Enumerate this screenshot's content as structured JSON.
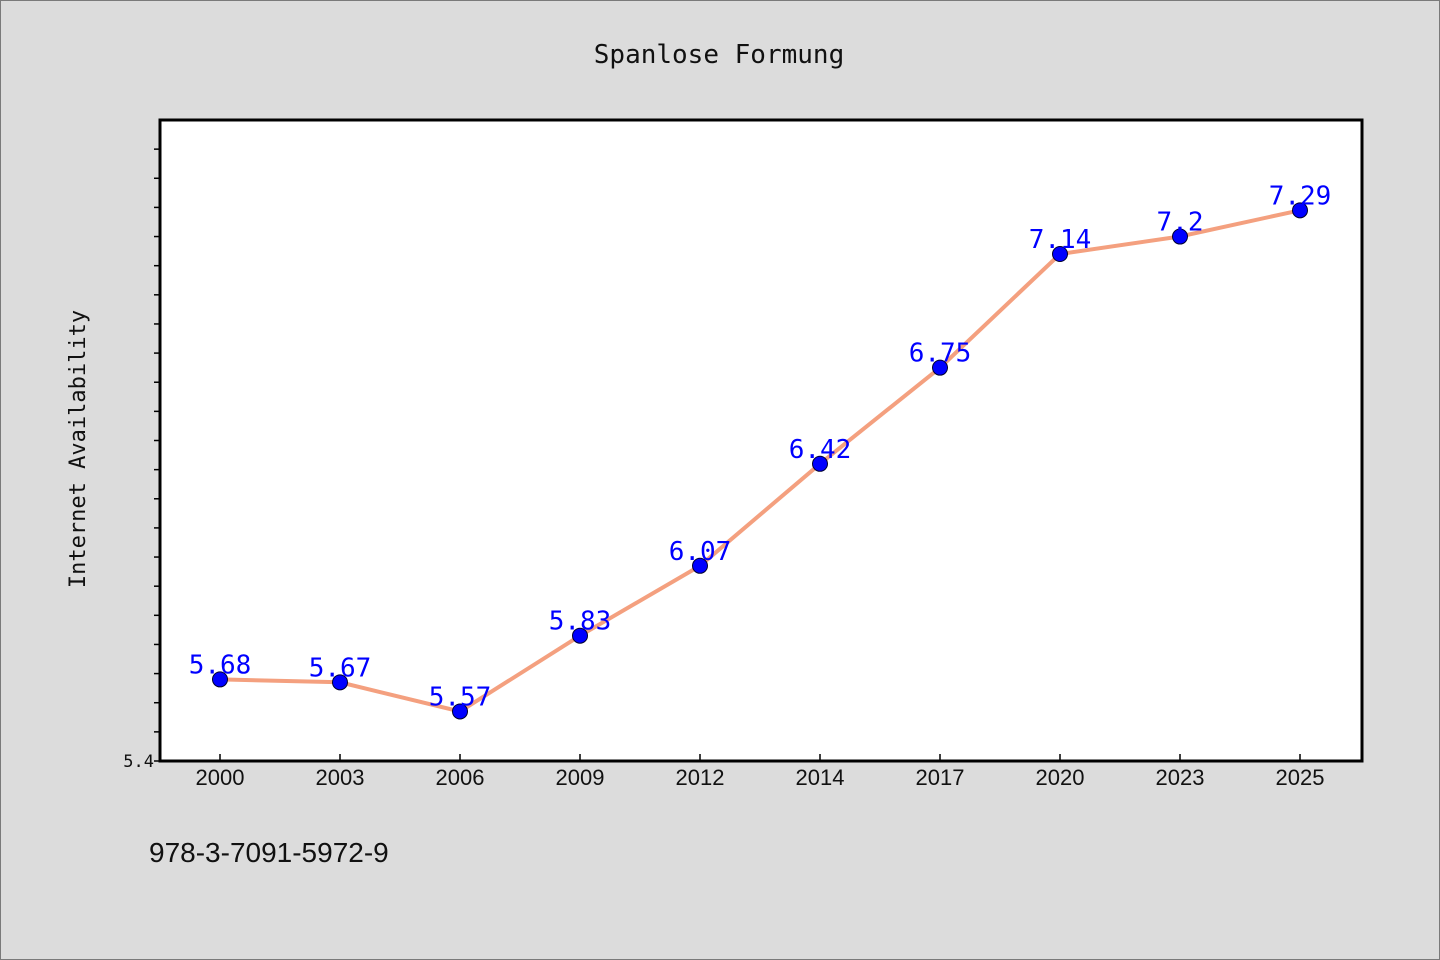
{
  "chart_data": {
    "type": "line",
    "title": "Spanlose Formung",
    "xlabel": "",
    "ylabel": "Internet Availability",
    "categories": [
      "2000",
      "2003",
      "2006",
      "2009",
      "2012",
      "2014",
      "2017",
      "2020",
      "2023",
      "2025"
    ],
    "series": [
      {
        "values": [
          5.68,
          5.67,
          5.57,
          5.83,
          6.07,
          6.42,
          6.75,
          7.14,
          7.2,
          7.29
        ]
      }
    ],
    "data_labels": [
      "5.68",
      "5.67",
      "5.57",
      "5.83",
      "6.07",
      "6.42",
      "6.75",
      "7.14",
      "7.2",
      "7.29"
    ],
    "y_tick_labels": [
      "5.4"
    ],
    "ylim": [
      5.4,
      7.6
    ],
    "grid": false,
    "colors": {
      "line": "#f4a07f",
      "marker": "#0000ff",
      "label": "#0000ff",
      "plot_bg": "#ffffff",
      "page_bg": "#dcdcdc"
    }
  },
  "footnote": "978-3-7091-5972-9"
}
